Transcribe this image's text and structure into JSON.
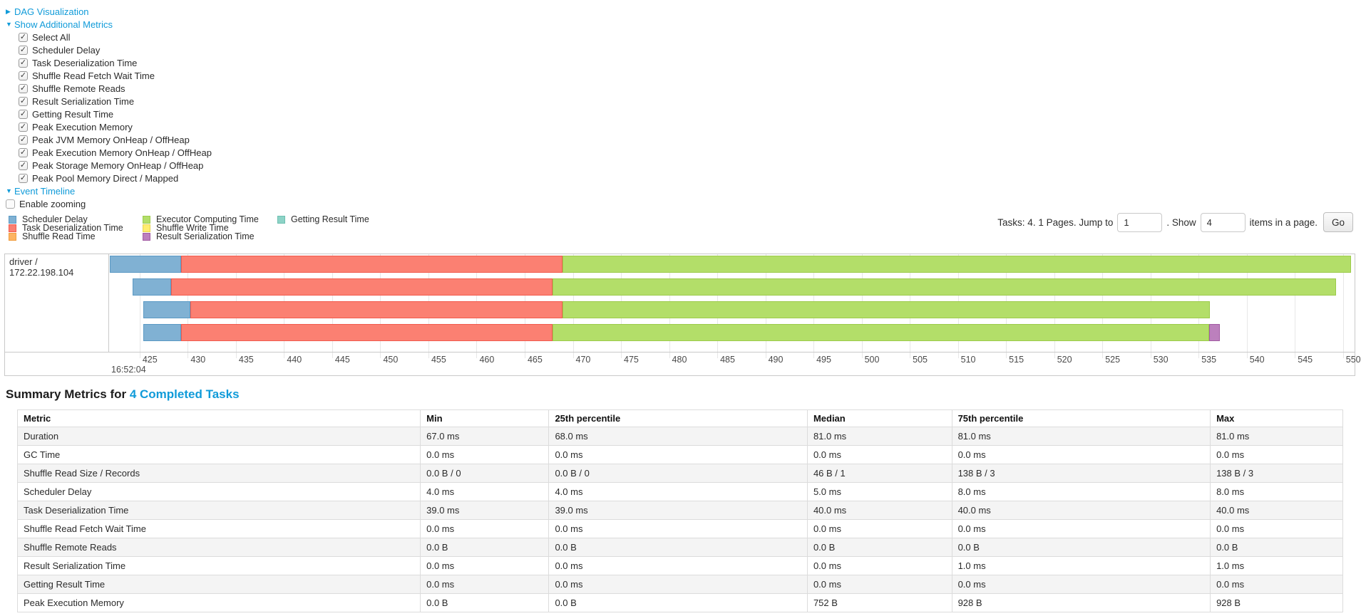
{
  "links": {
    "dag": {
      "label": "DAG Visualization",
      "arrow": "▶"
    },
    "metrics": {
      "label": "Show Additional Metrics",
      "arrow": "▼"
    },
    "timeline": {
      "label": "Event Timeline",
      "arrow": "▼"
    }
  },
  "metric_checkboxes": [
    {
      "label": "Select All",
      "checked": true
    },
    {
      "label": "Scheduler Delay",
      "checked": true
    },
    {
      "label": "Task Deserialization Time",
      "checked": true
    },
    {
      "label": "Shuffle Read Fetch Wait Time",
      "checked": true
    },
    {
      "label": "Shuffle Remote Reads",
      "checked": true
    },
    {
      "label": "Result Serialization Time",
      "checked": true
    },
    {
      "label": "Getting Result Time",
      "checked": true
    },
    {
      "label": "Peak Execution Memory",
      "checked": true
    },
    {
      "label": "Peak JVM Memory OnHeap / OffHeap",
      "checked": true
    },
    {
      "label": "Peak Execution Memory OnHeap / OffHeap",
      "checked": true
    },
    {
      "label": "Peak Storage Memory OnHeap / OffHeap",
      "checked": true
    },
    {
      "label": "Peak Pool Memory Direct / Mapped",
      "checked": true
    }
  ],
  "enable_zooming": {
    "label": "Enable zooming",
    "checked": false
  },
  "legend": {
    "columns": [
      [
        {
          "key": "scheduler_delay",
          "label": "Scheduler Delay"
        },
        {
          "key": "task_deserialization",
          "label": "Task Deserialization Time"
        },
        {
          "key": "shuffle_read",
          "label": "Shuffle Read Time"
        }
      ],
      [
        {
          "key": "executor_computing",
          "label": "Executor Computing Time"
        },
        {
          "key": "shuffle_write",
          "label": "Shuffle Write Time"
        },
        {
          "key": "result_serialization",
          "label": "Result Serialization Time"
        }
      ],
      [
        {
          "key": "getting_result",
          "label": "Getting Result Time"
        }
      ]
    ]
  },
  "pagination": {
    "prefix": "Tasks: 4. 1 Pages. Jump to",
    "jump_value": "1",
    "show_label": ". Show",
    "show_value": "4",
    "suffix": "items in a page.",
    "go_label": "Go"
  },
  "chart_data": {
    "type": "timeline",
    "row_label": "driver / 172.22.198.104",
    "axis": {
      "min": 421.9,
      "max": 551.2,
      "tick_start": 425,
      "tick_end": 550,
      "tick_step": 5,
      "major_label": "16:52:04",
      "units": "milliseconds within 16:52:04"
    },
    "colors": {
      "scheduler_delay": "#80B1D3",
      "task_deserialization": "#FB8072",
      "shuffle_read": "#FDB462",
      "executor_computing": "#B3DE69",
      "shuffle_write": "#FFED6F",
      "result_serialization": "#BC80BD",
      "getting_result": "#8DD3C7"
    },
    "border_colors": {
      "scheduler_delay": "#5a99c4",
      "task_deserialization": "#f25a4d",
      "shuffle_read": "#f09c3e",
      "executor_computing": "#9ccb4b",
      "shuffle_write": "#e8d44e",
      "result_serialization": "#a25ba3",
      "getting_result": "#6dbfb0"
    },
    "tasks": [
      {
        "segments": [
          {
            "name": "scheduler_delay",
            "start": 421.9,
            "end": 429.3
          },
          {
            "name": "task_deserialization",
            "start": 429.3,
            "end": 468.9
          },
          {
            "name": "executor_computing",
            "start": 468.9,
            "end": 550.8
          }
        ]
      },
      {
        "segments": [
          {
            "name": "scheduler_delay",
            "start": 424.3,
            "end": 428.3
          },
          {
            "name": "task_deserialization",
            "start": 428.3,
            "end": 467.9
          },
          {
            "name": "executor_computing",
            "start": 467.9,
            "end": 549.3
          }
        ]
      },
      {
        "segments": [
          {
            "name": "scheduler_delay",
            "start": 425.4,
            "end": 430.3
          },
          {
            "name": "task_deserialization",
            "start": 430.3,
            "end": 468.9
          },
          {
            "name": "executor_computing",
            "start": 468.9,
            "end": 536.2
          }
        ]
      },
      {
        "segments": [
          {
            "name": "scheduler_delay",
            "start": 425.4,
            "end": 429.3
          },
          {
            "name": "task_deserialization",
            "start": 429.3,
            "end": 467.9
          },
          {
            "name": "executor_computing",
            "start": 467.9,
            "end": 536.1
          },
          {
            "name": "result_serialization",
            "start": 536.1,
            "end": 537.2
          }
        ]
      }
    ]
  },
  "summary": {
    "title_prefix": "Summary Metrics for ",
    "title_link": "4 Completed Tasks",
    "columns": [
      "Metric",
      "Min",
      "25th percentile",
      "Median",
      "75th percentile",
      "Max"
    ],
    "col_widths_pct": [
      30.4,
      9.7,
      19.5,
      10.9,
      19.5,
      10.0
    ],
    "rows": [
      {
        "metric": "Duration",
        "values": [
          "67.0 ms",
          "68.0 ms",
          "81.0 ms",
          "81.0 ms",
          "81.0 ms"
        ]
      },
      {
        "metric": "GC Time",
        "values": [
          "0.0 ms",
          "0.0 ms",
          "0.0 ms",
          "0.0 ms",
          "0.0 ms"
        ]
      },
      {
        "metric": "Shuffle Read Size / Records",
        "values": [
          "0.0 B / 0",
          "0.0 B / 0",
          "46 B / 1",
          "138 B / 3",
          "138 B / 3"
        ]
      },
      {
        "metric": "Scheduler Delay",
        "values": [
          "4.0 ms",
          "4.0 ms",
          "5.0 ms",
          "8.0 ms",
          "8.0 ms"
        ]
      },
      {
        "metric": "Task Deserialization Time",
        "values": [
          "39.0 ms",
          "39.0 ms",
          "40.0 ms",
          "40.0 ms",
          "40.0 ms"
        ]
      },
      {
        "metric": "Shuffle Read Fetch Wait Time",
        "values": [
          "0.0 ms",
          "0.0 ms",
          "0.0 ms",
          "0.0 ms",
          "0.0 ms"
        ]
      },
      {
        "metric": "Shuffle Remote Reads",
        "values": [
          "0.0 B",
          "0.0 B",
          "0.0 B",
          "0.0 B",
          "0.0 B"
        ]
      },
      {
        "metric": "Result Serialization Time",
        "values": [
          "0.0 ms",
          "0.0 ms",
          "0.0 ms",
          "1.0 ms",
          "1.0 ms"
        ]
      },
      {
        "metric": "Getting Result Time",
        "values": [
          "0.0 ms",
          "0.0 ms",
          "0.0 ms",
          "0.0 ms",
          "0.0 ms"
        ]
      },
      {
        "metric": "Peak Execution Memory",
        "values": [
          "0.0 B",
          "0.0 B",
          "752 B",
          "928 B",
          "928 B"
        ]
      }
    ]
  }
}
